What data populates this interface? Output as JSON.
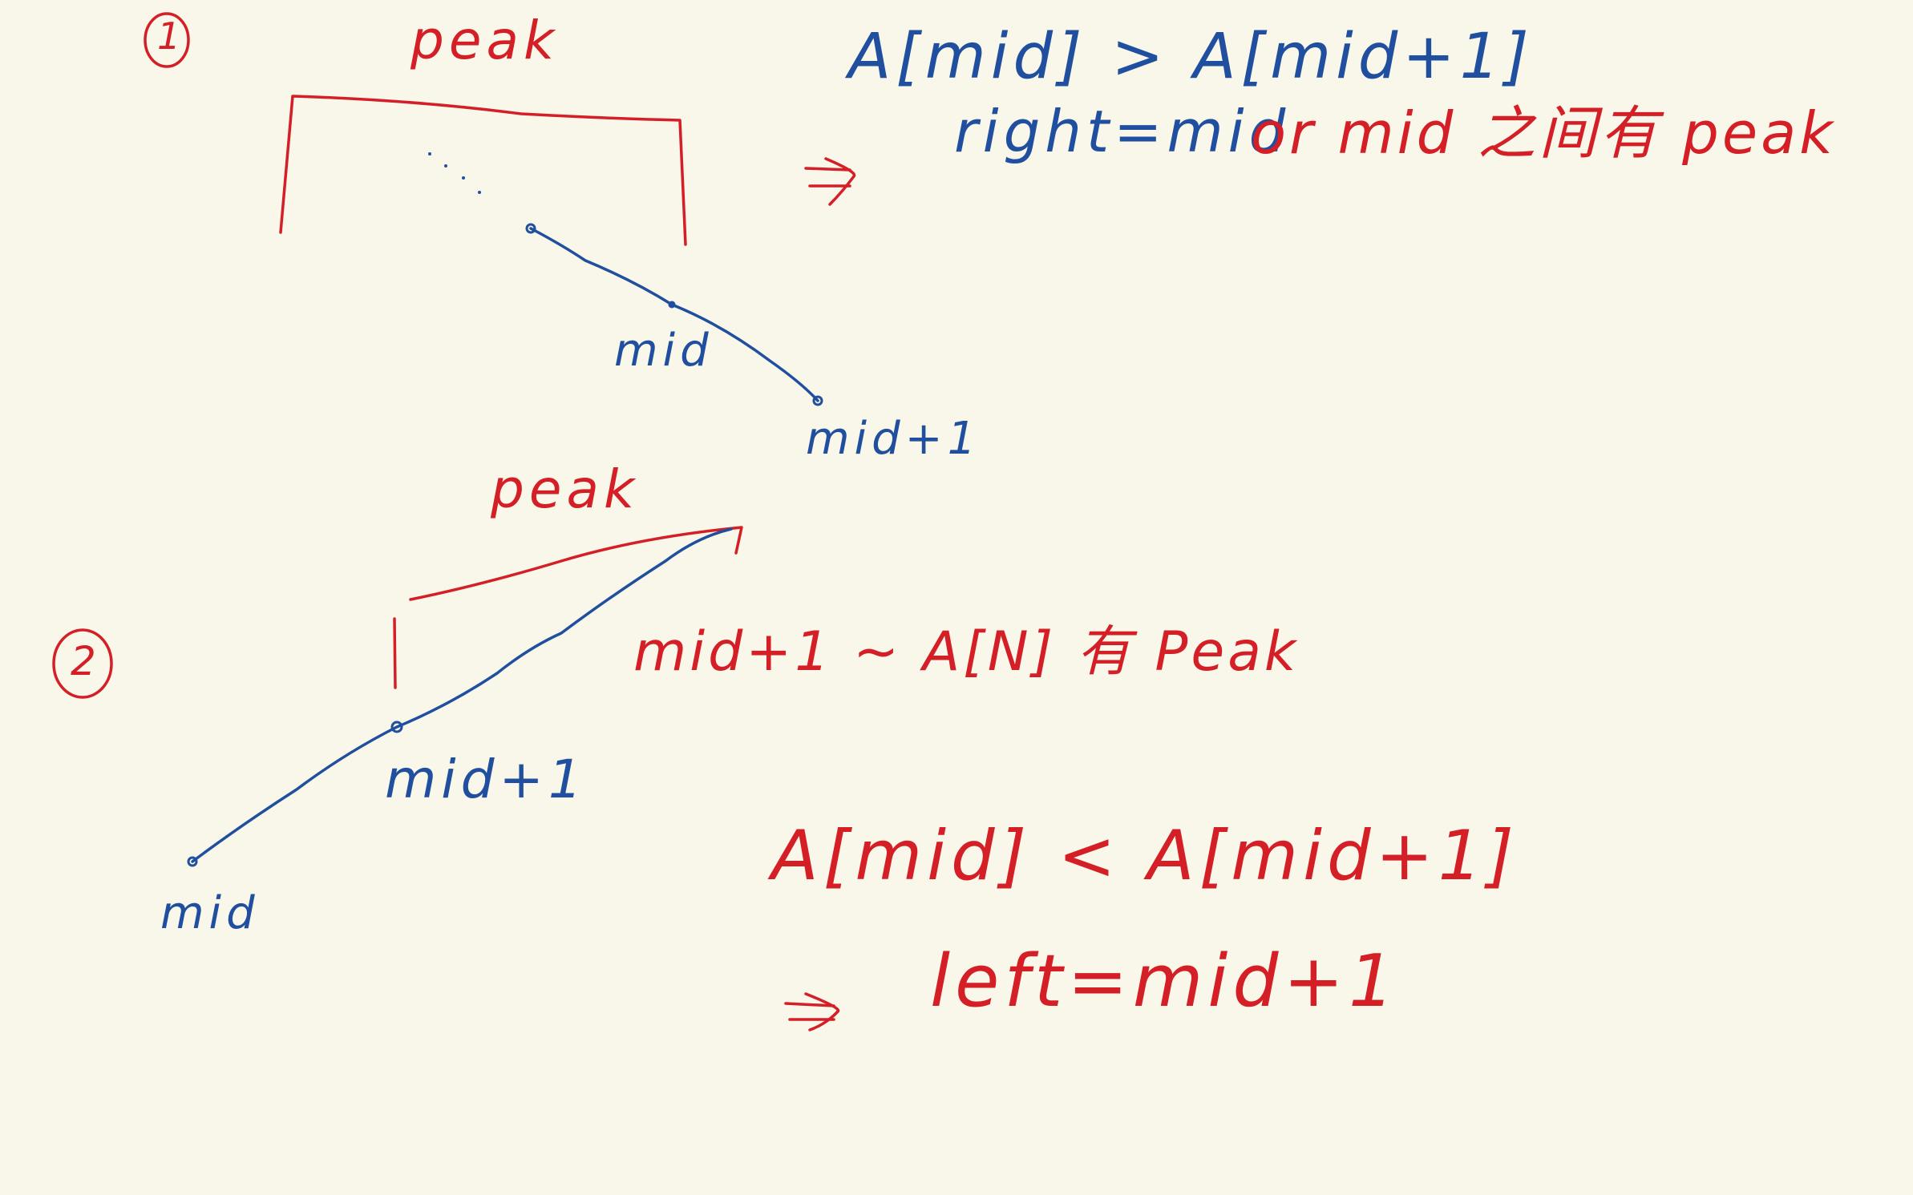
{
  "case1": {
    "marker": "1",
    "peak_label": "peak",
    "mid_label": "mid",
    "mid_plus_label": "mid+1",
    "condition": "A[mid] > A[mid+1]",
    "arrow": "⇒",
    "action": "right=mid",
    "note": "or mid 之间有 peak"
  },
  "case2": {
    "marker": "2",
    "peak_label": "peak",
    "mid_label": "mid",
    "mid_plus_label": "mid+1",
    "note": "mid+1 ~ A[N] 有 Peak",
    "condition": "A[mid] < A[mid+1]",
    "arrow": "⇒",
    "action": "left=mid+1"
  },
  "colors": {
    "background": "#f9f6ea",
    "red_ink": "#d41f27",
    "blue_ink": "#1f4f9e"
  }
}
